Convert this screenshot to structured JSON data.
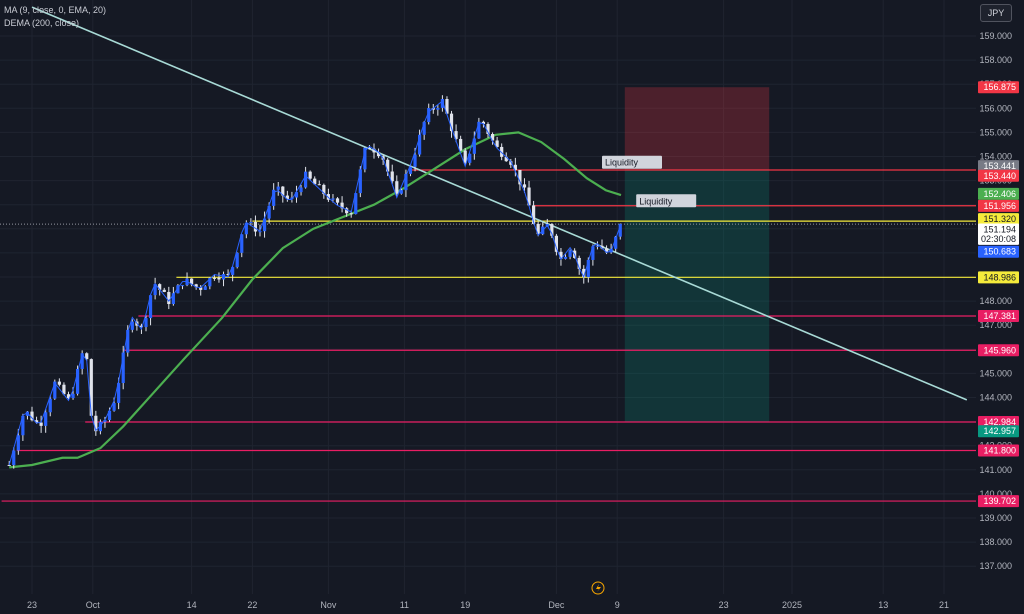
{
  "indicators": [
    "MA (9, close, 0, EMA, 20)",
    "DEMA (200, close)"
  ],
  "currency_button": "JPY",
  "colors": {
    "background": "#151924",
    "grid": "#1f2430",
    "axis_text": "#b2b5be",
    "candle": "#2962ff",
    "candle_wick": "#e0e3eb",
    "ma_line": "#2962ff",
    "dema_line": "#4caf50",
    "trendline": "#a8dad6",
    "red_level": "#f23645",
    "pink_level": "#e91e63",
    "yellow_level": "#f5eb3b",
    "stop_zone": "rgba(242,54,69,0.25)",
    "target_zone": "rgba(8,153,129,0.22)"
  },
  "chart_data": {
    "type": "candlestick",
    "symbol_currency": "JPY",
    "ylim": [
      136.6,
      159.6
    ],
    "y_ticks": [
      137,
      138,
      139,
      140,
      141,
      142,
      143,
      144,
      145,
      146,
      147,
      148,
      149,
      150,
      151,
      152,
      153,
      154,
      155,
      156,
      157,
      158,
      159
    ],
    "x_ticks": [
      {
        "label": "23",
        "day": 0
      },
      {
        "label": "Oct",
        "day": 8
      },
      {
        "label": "14",
        "day": 21
      },
      {
        "label": "22",
        "day": 29
      },
      {
        "label": "Nov",
        "day": 39
      },
      {
        "label": "11",
        "day": 49
      },
      {
        "label": "19",
        "day": 57
      },
      {
        "label": "Dec",
        "day": 69
      },
      {
        "label": "9",
        "day": 77
      },
      {
        "label": "23",
        "day": 91
      },
      {
        "label": "2025",
        "day": 100
      },
      {
        "label": "13",
        "day": 112
      },
      {
        "label": "21",
        "day": 120
      }
    ],
    "price_path": [
      {
        "day": -3,
        "price": 141.2
      },
      {
        "day": -1,
        "price": 143.5
      },
      {
        "day": 1,
        "price": 142.8
      },
      {
        "day": 3,
        "price": 144.6
      },
      {
        "day": 5,
        "price": 143.8
      },
      {
        "day": 7,
        "price": 146.3
      },
      {
        "day": 8,
        "price": 142.5
      },
      {
        "day": 9.5,
        "price": 143.0
      },
      {
        "day": 11,
        "price": 144.0
      },
      {
        "day": 13,
        "price": 147.4
      },
      {
        "day": 14.5,
        "price": 146.8
      },
      {
        "day": 16,
        "price": 148.8
      },
      {
        "day": 18,
        "price": 148.0
      },
      {
        "day": 20,
        "price": 148.9
      },
      {
        "day": 22,
        "price": 148.5
      },
      {
        "day": 24,
        "price": 149.1
      },
      {
        "day": 26,
        "price": 149.0
      },
      {
        "day": 28,
        "price": 151.3
      },
      {
        "day": 30,
        "price": 150.9
      },
      {
        "day": 32,
        "price": 152.7
      },
      {
        "day": 34,
        "price": 152.1
      },
      {
        "day": 36,
        "price": 153.2
      },
      {
        "day": 38,
        "price": 152.6
      },
      {
        "day": 40,
        "price": 152.0
      },
      {
        "day": 42,
        "price": 151.7
      },
      {
        "day": 44,
        "price": 154.5
      },
      {
        "day": 46,
        "price": 154.1
      },
      {
        "day": 48,
        "price": 152.3
      },
      {
        "day": 50,
        "price": 153.8
      },
      {
        "day": 52,
        "price": 155.8
      },
      {
        "day": 54,
        "price": 156.3
      },
      {
        "day": 55.5,
        "price": 154.9
      },
      {
        "day": 57,
        "price": 153.6
      },
      {
        "day": 59,
        "price": 155.6
      },
      {
        "day": 61,
        "price": 154.4
      },
      {
        "day": 63,
        "price": 153.8
      },
      {
        "day": 65,
        "price": 152.4
      },
      {
        "day": 66.5,
        "price": 150.7
      },
      {
        "day": 68,
        "price": 151.2
      },
      {
        "day": 69.5,
        "price": 149.7
      },
      {
        "day": 71,
        "price": 150.3
      },
      {
        "day": 72.5,
        "price": 148.9
      },
      {
        "day": 74,
        "price": 150.5
      },
      {
        "day": 76,
        "price": 149.9
      },
      {
        "day": 77.5,
        "price": 151.2
      }
    ],
    "dema_path": [
      {
        "day": -3,
        "price": 141.1
      },
      {
        "day": 0,
        "price": 141.2
      },
      {
        "day": 4,
        "price": 141.5
      },
      {
        "day": 6,
        "price": 141.5
      },
      {
        "day": 9,
        "price": 141.9
      },
      {
        "day": 12,
        "price": 142.8
      },
      {
        "day": 16,
        "price": 144.2
      },
      {
        "day": 20,
        "price": 145.6
      },
      {
        "day": 25,
        "price": 147.3
      },
      {
        "day": 29,
        "price": 148.9
      },
      {
        "day": 33,
        "price": 150.2
      },
      {
        "day": 37,
        "price": 151.0
      },
      {
        "day": 41,
        "price": 151.5
      },
      {
        "day": 45,
        "price": 152.0
      },
      {
        "day": 49,
        "price": 152.7
      },
      {
        "day": 53,
        "price": 153.5
      },
      {
        "day": 57,
        "price": 154.3
      },
      {
        "day": 61,
        "price": 154.9
      },
      {
        "day": 64,
        "price": 155.0
      },
      {
        "day": 67,
        "price": 154.6
      },
      {
        "day": 70,
        "price": 153.9
      },
      {
        "day": 73,
        "price": 153.1
      },
      {
        "day": 75.5,
        "price": 152.6
      },
      {
        "day": 77.5,
        "price": 152.4
      }
    ],
    "trendline": [
      {
        "day": 0,
        "price": 160.2
      },
      {
        "day": 123,
        "price": 143.9
      }
    ],
    "horizontal_levels": [
      {
        "price": 153.44,
        "label": "153.440",
        "color": "#f23645",
        "from_day": 50
      },
      {
        "price": 151.956,
        "label": "151.956",
        "color": "#f23645",
        "from_day": 66
      },
      {
        "price": 151.32,
        "label": "151.320",
        "color": "#f5eb3b",
        "from_day": 29
      },
      {
        "price": 148.986,
        "label": "148.986",
        "color": "#f5eb3b",
        "from_day": 19
      },
      {
        "price": 147.381,
        "label": "147.381",
        "color": "#e91e63",
        "from_day": 14
      },
      {
        "price": 145.96,
        "label": "145.960",
        "color": "#e91e63",
        "from_day": 12
      },
      {
        "price": 142.984,
        "label": "142.984",
        "color": "#e91e63",
        "from_day": 7
      },
      {
        "price": 141.8,
        "label": "141.800",
        "color": "#e91e63",
        "from_day": -2
      },
      {
        "price": 139.702,
        "label": "139.702",
        "color": "#e91e63",
        "from_day": -4
      }
    ],
    "position": {
      "from_day": 78,
      "to_day": 97,
      "stop": 156.875,
      "entry": 153.44,
      "target": 142.984
    },
    "annotations": [
      {
        "text": "Liquidity",
        "day": 75,
        "price": 153.7
      },
      {
        "text": "Liquidity",
        "day": 79.5,
        "price": 152.1
      }
    ],
    "price_badges": [
      {
        "label": "156.875",
        "price": 156.875,
        "bg": "#f23645",
        "fg": "#ffffff"
      },
      {
        "label": "153.441",
        "price": 153.6,
        "bg": "#787b86",
        "fg": "#ffffff"
      },
      {
        "label": "153.440",
        "price": 153.2,
        "bg": "#f23645",
        "fg": "#ffffff"
      },
      {
        "label": "152.406",
        "price": 152.45,
        "bg": "#4caf50",
        "fg": "#ffffff"
      },
      {
        "label": "151.956",
        "price": 151.95,
        "bg": "#f23645",
        "fg": "#ffffff"
      },
      {
        "label": "151.320",
        "price": 151.4,
        "bg": "#f5eb3b",
        "fg": "#131722"
      },
      {
        "label": "151.194",
        "price": 150.97,
        "bg": "#ffffff",
        "fg": "#131722"
      },
      {
        "label": "02:30:08",
        "price": 150.58,
        "bg": "#ffffff",
        "fg": "#131722"
      },
      {
        "label": "150.683",
        "price": 150.05,
        "bg": "#2962ff",
        "fg": "#ffffff"
      },
      {
        "label": "148.986",
        "price": 148.986,
        "bg": "#f5eb3b",
        "fg": "#131722"
      },
      {
        "label": "147.381",
        "price": 147.381,
        "bg": "#e91e63",
        "fg": "#ffffff"
      },
      {
        "label": "145.960",
        "price": 145.96,
        "bg": "#e91e63",
        "fg": "#ffffff"
      },
      {
        "label": "142.984",
        "price": 142.984,
        "bg": "#e91e63",
        "fg": "#ffffff"
      },
      {
        "label": "142.957",
        "price": 142.6,
        "bg": "#089981",
        "fg": "#ffffff"
      },
      {
        "label": "141.800",
        "price": 141.8,
        "bg": "#e91e63",
        "fg": "#ffffff"
      },
      {
        "label": "139.702",
        "price": 139.702,
        "bg": "#e91e63",
        "fg": "#ffffff"
      }
    ]
  }
}
